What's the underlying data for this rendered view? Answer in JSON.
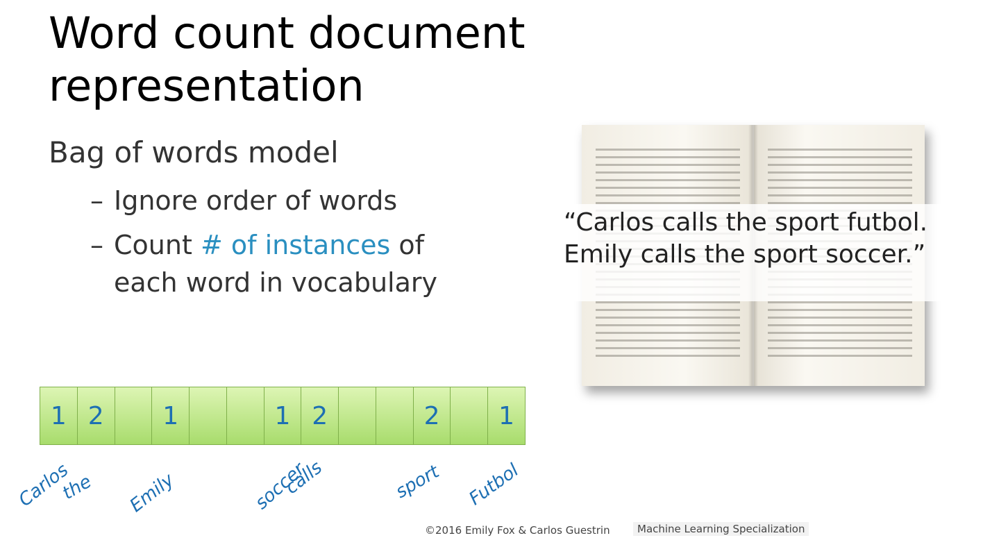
{
  "slide": {
    "title_line1": "Word count document",
    "title_line2": "representation",
    "bullet": "Bag of words model",
    "sub1": "Ignore order of words",
    "sub2_prefix": "Count ",
    "sub2_highlight": "# of instances",
    "sub2_suffix": " of",
    "sub2_cont": "each word in vocabulary",
    "dash": "–"
  },
  "quote": {
    "line1": "“Carlos calls the sport futbol.",
    "line2": "Emily calls the sport soccer.”"
  },
  "vector": {
    "cells": [
      "1",
      "2",
      "",
      "1",
      "",
      "",
      "1",
      "2",
      "",
      "",
      "2",
      "",
      "1"
    ],
    "words": [
      "Carlos",
      "the",
      "Emily",
      "soccer",
      "calls",
      "sport",
      "Futbol"
    ]
  },
  "footer": {
    "copyright": "©2016 Emily Fox & Carlos Guestrin",
    "course": "Machine Learning Specialization"
  },
  "colors": {
    "highlight": "#2a8fc0",
    "handwriting": "#1d6fb3",
    "cell_green": "#a8dc6c"
  }
}
